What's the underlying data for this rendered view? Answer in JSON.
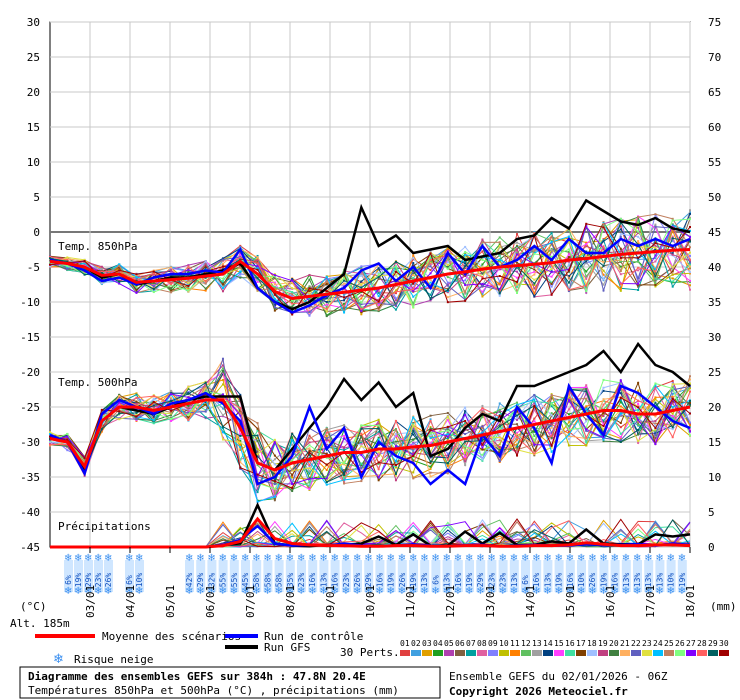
{
  "chart_data": {
    "type": "line",
    "left_axis": {
      "min": -45,
      "max": 30,
      "step": 5
    },
    "right_axis": {
      "min": 0,
      "max": 75,
      "step": 5
    },
    "grid": true,
    "date_labels": [
      "03/01",
      "04/01",
      "05/01",
      "06/01",
      "07/01",
      "08/01",
      "09/01",
      "10/01",
      "11/01",
      "12/01",
      "13/01",
      "14/01",
      "15/01",
      "16/01",
      "17/01",
      "18/01"
    ],
    "panel_labels": {
      "t850": "Temp. 850hPa",
      "t500": "Temp. 500hPa",
      "precip": "Précipitations"
    },
    "unit_left": "(°C)",
    "unit_right": "(mm)",
    "altitude": "Alt. 185m",
    "snow_pct": [
      "6%",
      "19%",
      "29%",
      "23%",
      "26%",
      "6%",
      "10%",
      "42%",
      "29%",
      "32%",
      "55%",
      "55%",
      "45%",
      "58%",
      "58%",
      "58%",
      "35%",
      "23%",
      "16%",
      "13%",
      "16%",
      "23%",
      "26%",
      "29%",
      "16%",
      "19%",
      "26%",
      "19%",
      "13%",
      "6%",
      "13%",
      "16%",
      "19%",
      "29%",
      "23%",
      "23%",
      "13%",
      "6%",
      "16%",
      "13%",
      "19%",
      "16%",
      "10%",
      "26%",
      "19%",
      "16%",
      "13%",
      "13%",
      "13%",
      "13%",
      "10%",
      "19%"
    ],
    "series": [
      {
        "name": "Moyenne des scénarios",
        "color": "#ff0000",
        "t850": [
          -4.2,
          -4.5,
          -5,
          -6.2,
          -6,
          -7.2,
          -7,
          -6.8,
          -6.6,
          -6.3,
          -6,
          -4.2,
          -6,
          -8.5,
          -9.5,
          -9.2,
          -8.9,
          -8.6,
          -8.3,
          -8,
          -7.5,
          -7,
          -6.5,
          -6,
          -5.7,
          -5.3,
          -5,
          -4.8,
          -4.6,
          -4.4,
          -4,
          -3.8,
          -3.5,
          -3.2,
          -3,
          -2.8,
          -2.6,
          -2.5
        ],
        "t500": [
          -29.5,
          -30,
          -33.5,
          -27,
          -25,
          -25,
          -25.5,
          -25,
          -24.5,
          -24,
          -24,
          -28,
          -33,
          -34,
          -33,
          -32.5,
          -32,
          -31.5,
          -31.5,
          -31,
          -31,
          -30.7,
          -30.5,
          -30,
          -29.5,
          -29,
          -28.5,
          -28,
          -27.5,
          -27,
          -26.5,
          -26,
          -25.5,
          -25.5,
          -26,
          -26,
          -25.5,
          -25
        ],
        "precip": [
          0,
          0,
          0,
          0,
          0,
          0,
          0,
          0,
          0,
          0,
          0.2,
          0.8,
          4,
          1.2,
          0.5,
          0.3,
          0.2,
          0.2,
          0.1,
          0.1,
          0.2,
          0.2,
          0.1,
          0.1,
          0.2,
          0.2,
          0.1,
          0.1,
          0.2,
          0.2,
          0.3,
          0.6,
          0.4,
          0.2,
          0.2,
          0.3,
          0.3,
          0.2
        ]
      },
      {
        "name": "Run de contrôle",
        "color": "#0000ff",
        "t850": [
          -4,
          -4.5,
          -5.5,
          -7,
          -6.5,
          -7.5,
          -6.5,
          -6,
          -6,
          -5.5,
          -5.8,
          -2.5,
          -8,
          -10,
          -11.5,
          -10.5,
          -9,
          -8,
          -5.5,
          -4.5,
          -7,
          -5,
          -8,
          -3,
          -6,
          -2,
          -5,
          -4,
          -2,
          -4,
          -1,
          -3,
          -3,
          -1,
          -2,
          -1,
          -2,
          -1
        ],
        "t500": [
          -29,
          -30,
          -34.5,
          -26,
          -24,
          -25,
          -26,
          -24.5,
          -24,
          -23,
          -24.5,
          -27,
          -36,
          -35,
          -32,
          -25,
          -31,
          -28,
          -35,
          -30,
          -32,
          -33,
          -36,
          -34,
          -36,
          -29,
          -32,
          -25,
          -28,
          -33,
          -22,
          -26,
          -29,
          -22,
          -23,
          -25,
          -27,
          -28
        ],
        "precip": [
          0,
          0,
          0,
          0,
          0,
          0,
          0,
          0,
          0,
          0,
          0.3,
          1,
          3,
          0.5,
          0.2,
          0.3,
          0.2,
          0.5,
          0.2,
          0.1,
          0.2,
          0.4,
          0.2,
          0.1,
          0.3,
          0.3,
          0.1,
          0.2,
          0.3,
          0.2,
          0.2,
          0.4,
          0.3,
          0.3,
          0.4,
          0.2,
          0.5,
          0.3
        ]
      },
      {
        "name": "Run GFS",
        "color": "#000000",
        "t850": [
          -4,
          -4.5,
          -5,
          -6.5,
          -6,
          -7.5,
          -7,
          -6.5,
          -6.5,
          -6,
          -5.5,
          -4.5,
          -8,
          -10,
          -11,
          -10,
          -8,
          -6,
          3.5,
          -2,
          -0.5,
          -3,
          -2.5,
          -2,
          -4,
          -3.5,
          -3,
          -1,
          -0.5,
          2,
          0.5,
          4.5,
          3,
          1.5,
          1,
          2,
          0.5,
          0
        ],
        "t500": [
          -29.5,
          -30,
          -34,
          -27,
          -25,
          -25.5,
          -26,
          -25,
          -24,
          -23.5,
          -23.5,
          -23.5,
          -33,
          -34,
          -31,
          -28,
          -25,
          -21,
          -24,
          -21.5,
          -25,
          -23,
          -32,
          -31,
          -28,
          -26,
          -27,
          -22,
          -22,
          -21,
          -20,
          -19,
          -17,
          -20,
          -16,
          -19,
          -20,
          -22
        ],
        "precip": [
          0,
          0,
          0,
          0,
          0,
          0,
          0,
          0,
          0,
          0,
          0.3,
          0.5,
          6,
          0.5,
          0.2,
          0.1,
          0.3,
          0.3,
          0.5,
          1.5,
          0.3,
          1.8,
          0.2,
          0.2,
          2.2,
          0.5,
          2,
          0.3,
          0.3,
          0.8,
          0.5,
          2.5,
          0.5,
          0.4,
          0.4,
          1.8,
          1.5,
          1.8
        ]
      }
    ],
    "legend": {
      "mean": "Moyenne des scénarios",
      "control": "Run de contrôle",
      "gfs": "Run GFS",
      "snow": "Risque neige",
      "perts": "30 Perts."
    },
    "member_numbers": [
      "01",
      "02",
      "03",
      "04",
      "05",
      "06",
      "07",
      "08",
      "09",
      "10",
      "11",
      "12",
      "13",
      "14",
      "15",
      "16",
      "17",
      "18",
      "19",
      "20",
      "21",
      "22",
      "23",
      "24",
      "25",
      "26",
      "27",
      "28",
      "29",
      "30"
    ],
    "member_colors": [
      "#e04040",
      "#40a0e0",
      "#e0a000",
      "#20a020",
      "#b040b0",
      "#806040",
      "#00a0a0",
      "#e060a0",
      "#8080ff",
      "#c0c000",
      "#ff8000",
      "#60c060",
      "#a0a0a0",
      "#004080",
      "#ff40ff",
      "#40e0a0",
      "#804000",
      "#a0c0ff",
      "#c04080",
      "#408040",
      "#ffb060",
      "#6060c0",
      "#e0e040",
      "#00c0ff",
      "#c08060",
      "#80ff80",
      "#8000ff",
      "#ff6060",
      "#006060",
      "#a00000"
    ],
    "title": "Diagramme des ensembles GEFS sur 384h : 47.8N 20.4E",
    "subtitle": "Températures 850hPa et 500hPa (°C) , précipitations (mm)",
    "run_info": "Ensemble GEFS du 02/01/2026 - 06Z",
    "copyright": "Copyright 2026 Meteociel.fr"
  }
}
